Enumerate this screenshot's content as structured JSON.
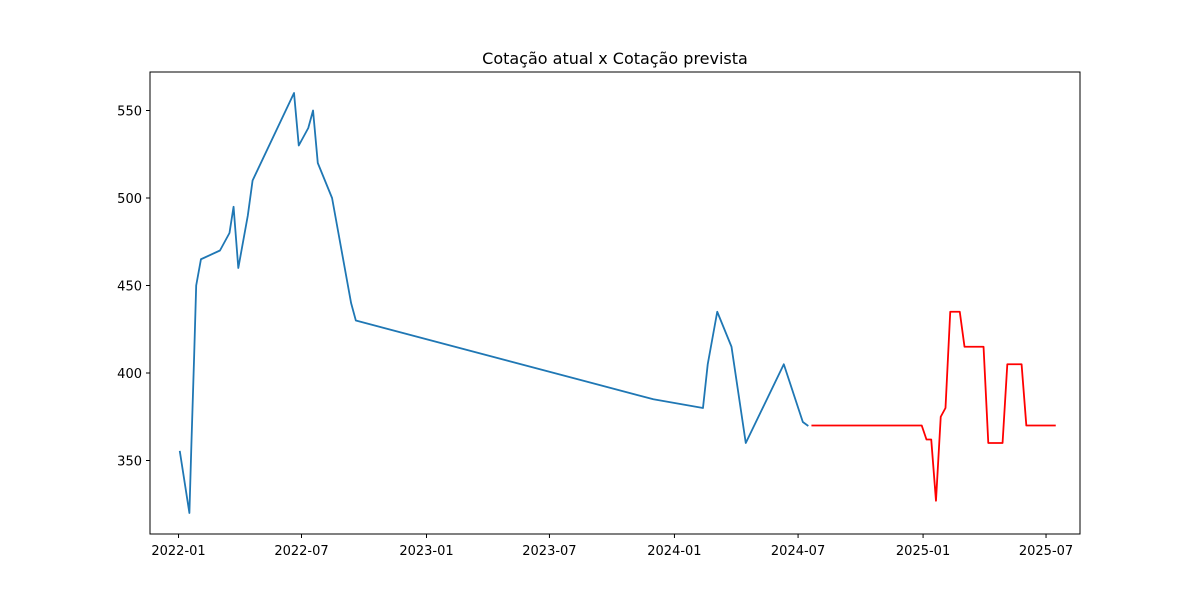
{
  "chart_data": {
    "type": "line",
    "title": "Cotação atual x Cotação prevista",
    "xlabel": "",
    "ylabel": "",
    "x_axis": "date",
    "xlim": [
      "2021-11-20",
      "2025-08-20"
    ],
    "ylim": [
      308,
      572
    ],
    "x_ticks": [
      "2022-01",
      "2022-07",
      "2023-01",
      "2023-07",
      "2024-01",
      "2024-07",
      "2025-01",
      "2025-07"
    ],
    "y_ticks": [
      350,
      400,
      450,
      500,
      550
    ],
    "grid": false,
    "legend": "none",
    "series": [
      {
        "color": "#1f77b4",
        "points": [
          [
            "2022-01-03",
            355
          ],
          [
            "2022-01-17",
            320
          ],
          [
            "2022-01-20",
            360
          ],
          [
            "2022-01-24",
            410
          ],
          [
            "2022-01-27",
            450
          ],
          [
            "2022-02-03",
            465
          ],
          [
            "2022-03-03",
            470
          ],
          [
            "2022-03-17",
            480
          ],
          [
            "2022-03-23",
            495
          ],
          [
            "2022-03-30",
            460
          ],
          [
            "2022-04-13",
            490
          ],
          [
            "2022-04-20",
            510
          ],
          [
            "2022-06-20",
            560
          ],
          [
            "2022-06-27",
            530
          ],
          [
            "2022-07-11",
            540
          ],
          [
            "2022-07-18",
            550
          ],
          [
            "2022-07-25",
            520
          ],
          [
            "2022-08-15",
            500
          ],
          [
            "2022-08-22",
            485
          ],
          [
            "2022-09-12",
            440
          ],
          [
            "2022-09-19",
            430
          ],
          [
            "2023-12-01",
            385
          ],
          [
            "2024-02-12",
            380
          ],
          [
            "2024-02-19",
            405
          ],
          [
            "2024-03-04",
            435
          ],
          [
            "2024-03-25",
            415
          ],
          [
            "2024-04-15",
            360
          ],
          [
            "2024-06-10",
            405
          ],
          [
            "2024-07-08",
            372
          ],
          [
            "2024-07-15",
            370
          ]
        ]
      },
      {
        "color": "#ff0000",
        "points": [
          [
            "2024-07-22",
            370
          ],
          [
            "2024-12-30",
            370
          ],
          [
            "2025-01-06",
            362
          ],
          [
            "2025-01-13",
            362
          ],
          [
            "2025-01-20",
            327
          ],
          [
            "2025-01-27",
            375
          ],
          [
            "2025-02-03",
            380
          ],
          [
            "2025-02-10",
            435
          ],
          [
            "2025-02-24",
            435
          ],
          [
            "2025-03-03",
            415
          ],
          [
            "2025-03-31",
            415
          ],
          [
            "2025-04-07",
            360
          ],
          [
            "2025-04-28",
            360
          ],
          [
            "2025-05-05",
            405
          ],
          [
            "2025-05-26",
            405
          ],
          [
            "2025-06-02",
            370
          ],
          [
            "2025-07-14",
            370
          ]
        ]
      }
    ]
  }
}
